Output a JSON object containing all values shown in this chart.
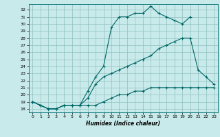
{
  "xlabel": "Humidex (Indice chaleur)",
  "background_color": "#c8eaea",
  "grid_color": "#8fbfbf",
  "line_color": "#006666",
  "xlim": [
    -0.5,
    23.5
  ],
  "ylim": [
    17.5,
    32.8
  ],
  "xticks": [
    0,
    1,
    2,
    3,
    4,
    5,
    6,
    7,
    8,
    9,
    10,
    11,
    12,
    13,
    14,
    15,
    16,
    17,
    18,
    19,
    20,
    21,
    22,
    23
  ],
  "yticks": [
    18,
    19,
    20,
    21,
    22,
    23,
    24,
    25,
    26,
    27,
    28,
    29,
    30,
    31,
    32
  ],
  "curve1_x": [
    0,
    1,
    2,
    3,
    4,
    5,
    6,
    7,
    8,
    9,
    10,
    11,
    12,
    13,
    14,
    15,
    16,
    17,
    18,
    19,
    20,
    21,
    22,
    23
  ],
  "curve1_y": [
    19.0,
    18.5,
    18.0,
    18.0,
    18.5,
    18.5,
    18.5,
    18.5,
    18.5,
    19.0,
    19.5,
    20.0,
    20.0,
    20.5,
    20.5,
    21.0,
    21.0,
    21.0,
    21.0,
    21.0,
    21.0,
    21.0,
    21.0,
    21.0
  ],
  "curve2_x": [
    0,
    1,
    2,
    3,
    4,
    5,
    6,
    7,
    8,
    9,
    10,
    11,
    12,
    13,
    14,
    15,
    16,
    17,
    18,
    19,
    20,
    21,
    22,
    23
  ],
  "curve2_y": [
    19.0,
    18.5,
    18.0,
    18.0,
    18.5,
    18.5,
    18.5,
    19.5,
    21.5,
    22.5,
    23.0,
    23.5,
    24.0,
    24.5,
    25.0,
    25.5,
    26.5,
    27.0,
    27.5,
    28.0,
    28.0,
    23.5,
    22.5,
    21.5
  ],
  "curve3_x": [
    0,
    1,
    2,
    3,
    4,
    5,
    6,
    7,
    8,
    9,
    10,
    11,
    12,
    13,
    14,
    15,
    16,
    17,
    18,
    19,
    20,
    21,
    22,
    23
  ],
  "curve3_y": [
    19.0,
    18.5,
    18.0,
    18.0,
    18.5,
    18.5,
    18.5,
    20.5,
    22.5,
    24.0,
    29.5,
    31.0,
    31.0,
    31.5,
    31.5,
    32.5,
    31.5,
    31.0,
    30.5,
    30.0,
    31.0,
    null,
    null,
    null
  ]
}
